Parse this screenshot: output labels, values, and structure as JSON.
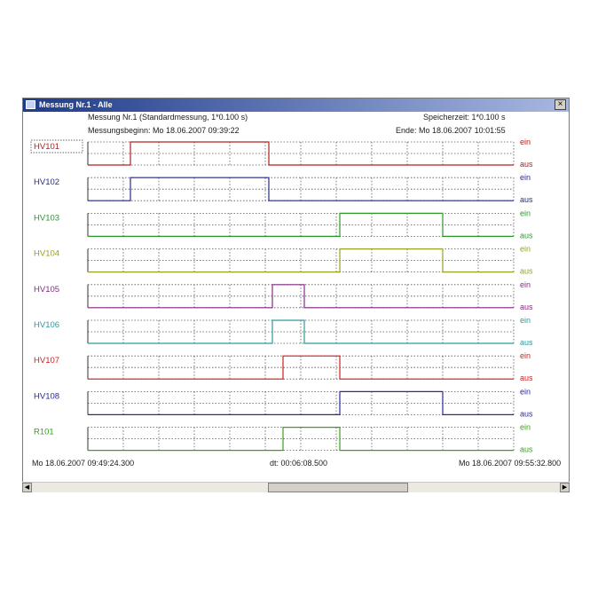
{
  "window": {
    "title": "Messung Nr.1 - Alle",
    "close_label": "×"
  },
  "header": {
    "measurement": "Messung Nr.1 (Standardmessung, 1*0.100 s)",
    "storage_time": "Speicherzeit: 1*0.100 s",
    "start": "Messungsbeginn: Mo 18.06.2007 09:39:22",
    "end": "Ende: Mo 18.06.2007 10:01:55"
  },
  "footer": {
    "left_time": "Mo 18.06.2007 09:49:24.300",
    "dt": "dt: 00:06:08.500",
    "right_time": "Mo 18.06.2007 09:55:32.800"
  },
  "scrollbar": {
    "left_arrow": "◀",
    "right_arrow": "▶"
  },
  "chart_data": {
    "type": "line",
    "x_unit": "division",
    "xlim": [
      0,
      12
    ],
    "on_label": "ein",
    "off_label": "aus",
    "series": [
      {
        "name": "HV101",
        "color": "#b02020",
        "segments": [
          [
            1.2,
            5.1
          ]
        ]
      },
      {
        "name": "HV102",
        "color": "#2a2a8a",
        "segments": [
          [
            1.2,
            5.1
          ]
        ]
      },
      {
        "name": "HV103",
        "color": "#2a9a2a",
        "segments": [
          [
            7.1,
            10.0
          ]
        ]
      },
      {
        "name": "HV104",
        "color": "#9aa020",
        "segments": [
          [
            7.1,
            10.0
          ]
        ]
      },
      {
        "name": "HV105",
        "color": "#8a2a8a",
        "segments": [
          [
            5.2,
            6.1
          ]
        ]
      },
      {
        "name": "HV106",
        "color": "#2a9aa0",
        "segments": [
          [
            5.2,
            6.1
          ]
        ]
      },
      {
        "name": "HV107",
        "color": "#d02020",
        "segments": [
          [
            5.5,
            7.1
          ]
        ]
      },
      {
        "name": "HV108",
        "color": "#2a2a9a",
        "segments": [
          [
            7.1,
            10.0
          ]
        ]
      },
      {
        "name": "R101",
        "color": "#3aa020",
        "segments": [
          [
            5.5,
            7.1
          ]
        ]
      }
    ],
    "label_colors": {
      "ein": [
        "#b02020",
        "#2a2a8a",
        "#2a9a2a",
        "#9aa020",
        "#8a2a8a",
        "#2a9aa0",
        "#d02020",
        "#2a2a9a",
        "#3aa020"
      ],
      "aus": [
        "#b02020",
        "#2a2a8a",
        "#2a9a2a",
        "#9aa020",
        "#8a2a8a",
        "#2a9aa0",
        "#d02020",
        "#2a2a9a",
        "#3aa020"
      ]
    },
    "grid": true
  }
}
